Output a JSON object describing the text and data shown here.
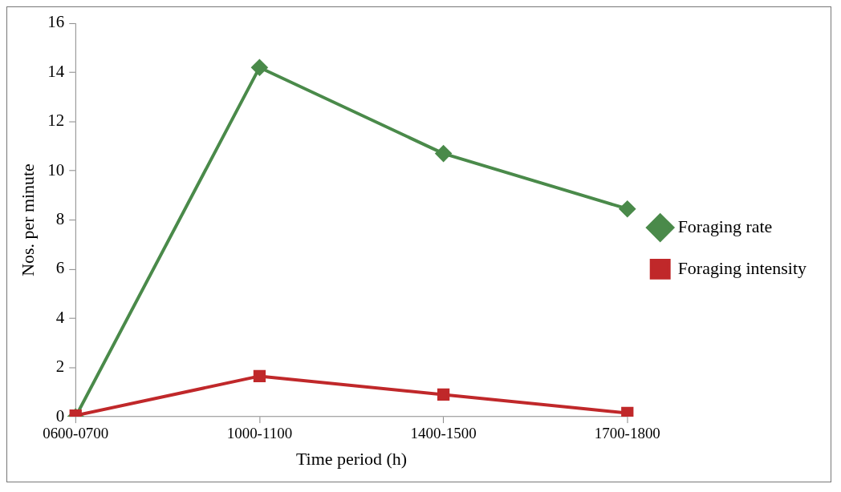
{
  "chart_data": {
    "type": "line",
    "xlabel": "Time period (h)",
    "ylabel": "Nos. per minute",
    "categories": [
      "0600-0700",
      "1000-1100",
      "1400-1500",
      "1700-1800"
    ],
    "series": [
      {
        "name": "Foraging rate",
        "color": "#4a8a4a",
        "marker": "diamond",
        "values": [
          0,
          14.2,
          10.7,
          8.45
        ]
      },
      {
        "name": "Foraging intensity",
        "color": "#c0282a",
        "marker": "square",
        "values": [
          0.05,
          1.65,
          0.9,
          0.15
        ]
      }
    ],
    "ylim": [
      0,
      16
    ],
    "yticks": [
      0,
      2,
      4,
      6,
      8,
      10,
      12,
      14,
      16
    ],
    "grid": false,
    "legend": "right",
    "line_style": "solid"
  }
}
